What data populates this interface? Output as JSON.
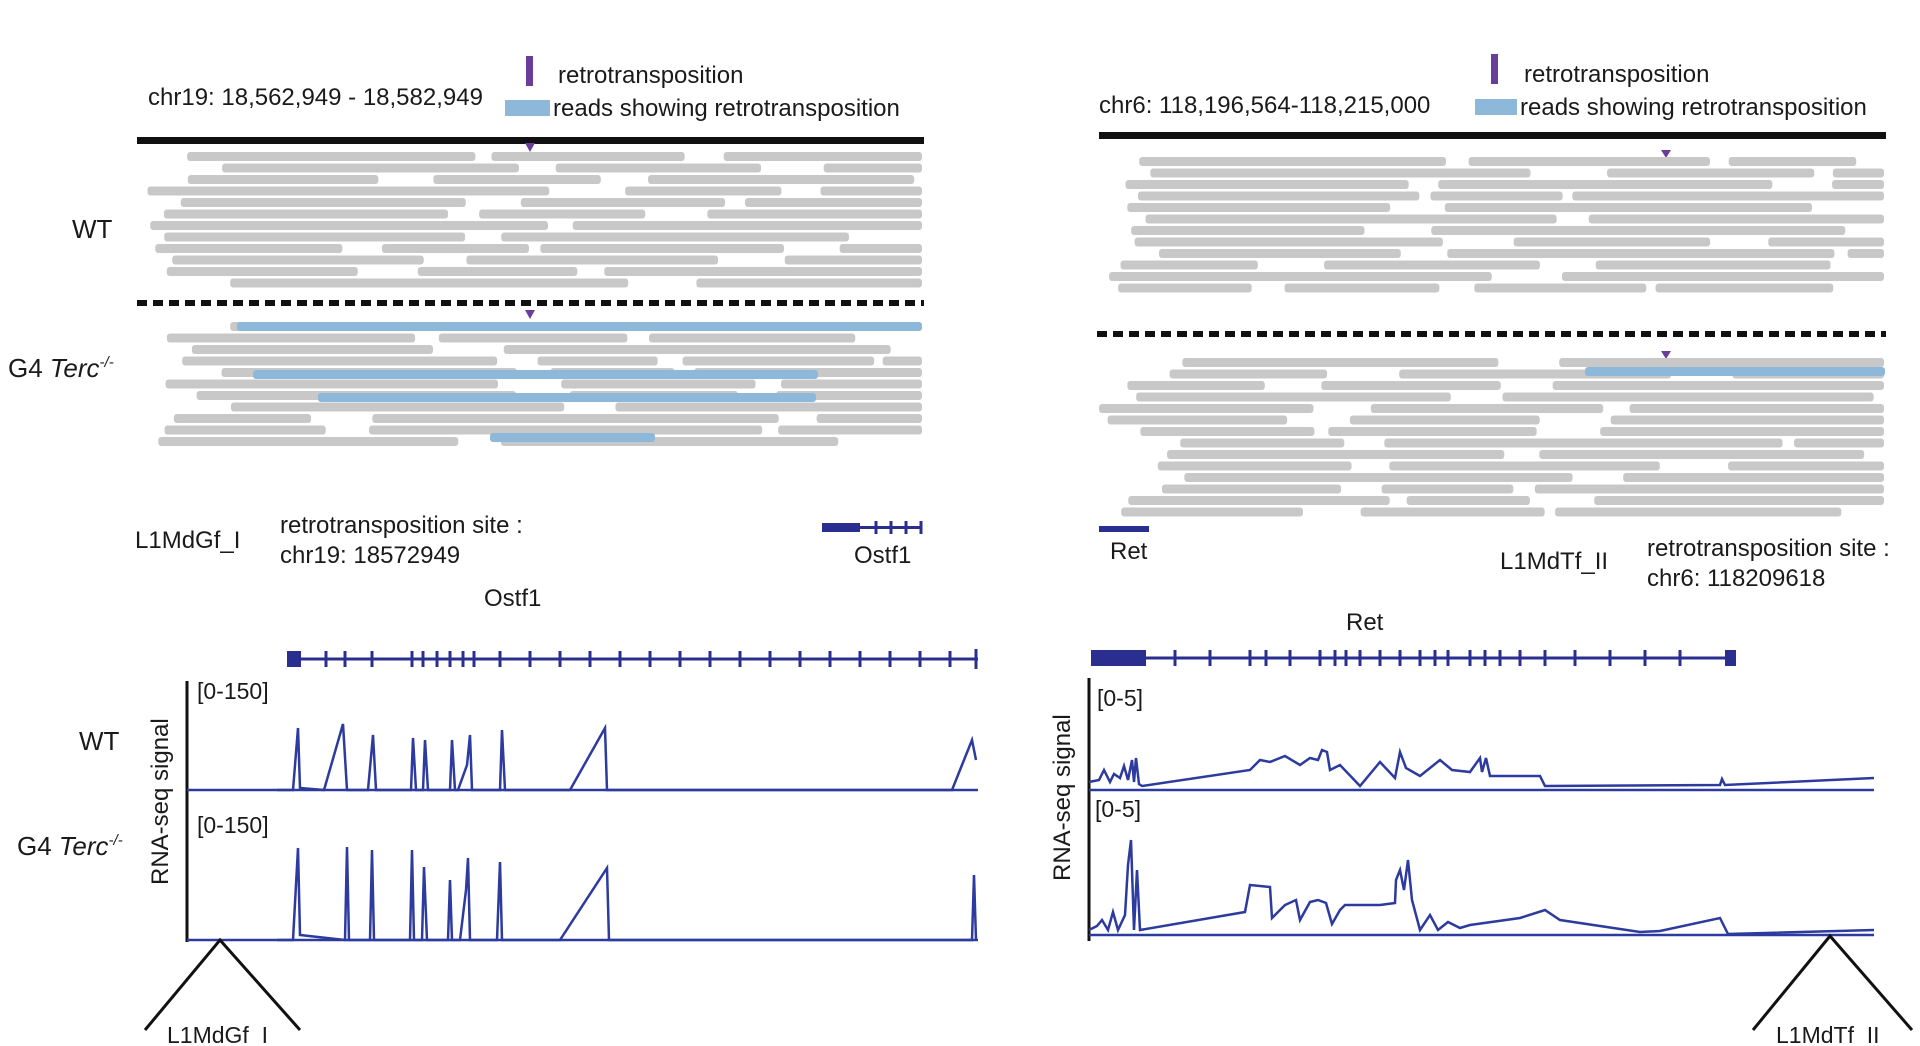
{
  "colors": {
    "read_gray": "#c8c8c8",
    "read_blue": "#8db8d9",
    "marker_purple": "#6a3d9a",
    "trace_blue": "#2d3a9e",
    "gene_blue": "#2a2f8f",
    "axis_black": "#111111"
  },
  "legend": {
    "retrotransposition": "retrotransposition",
    "reads": "reads showing retrotransposition"
  },
  "left": {
    "coords": "chr19: 18,562,949 - 18,582,949",
    "track_labels": {
      "wt": "WT",
      "mut_prefix": "G4 ",
      "mut_gene": "Terc",
      "mut_sup": "-/-"
    },
    "element": "L1MdGf_I",
    "site_title": "retrotransposition site :",
    "site_coord": "chr19: 18572949",
    "gene_small": "Ostf1",
    "gene_title": "Ostf1",
    "range_wt": "[0-150]",
    "range_mut": "[0-150]",
    "y_label": "RNA-seq signal",
    "bottom_element": "L1MdGf_I"
  },
  "right": {
    "coords": "chr6: 118,196,564-118,215,000",
    "element": "L1MdTf_II",
    "site_title": "retrotransposition site :",
    "site_coord": "chr6: 118209618",
    "gene_small": "Ret",
    "gene_title": "Ret",
    "range_wt": "[0-5]",
    "range_mut": "[0-5]",
    "y_label": "RNA-seq signal",
    "bottom_element": "L1MdTf_II"
  }
}
